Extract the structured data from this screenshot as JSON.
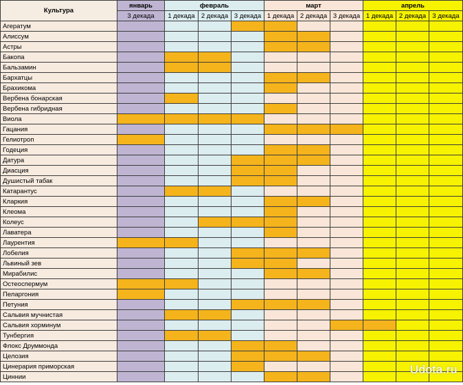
{
  "header": {
    "culture_label": "Культура",
    "months": [
      {
        "label": "январь",
        "decades": [
          "3 декада"
        ]
      },
      {
        "label": "февраль",
        "decades": [
          "1 декада",
          "2 декада",
          "3 декада"
        ]
      },
      {
        "label": "март",
        "decades": [
          "1 декада",
          "2 декада",
          "3 декада"
        ]
      },
      {
        "label": "апрель",
        "decades": [
          "1 декада",
          "2 декада",
          "3 декада"
        ]
      }
    ]
  },
  "colors": {
    "january": "#bfb5d3",
    "february": "#dcedf0",
    "march": "#f9e6d8",
    "april": "#f6f200",
    "sowing": "#f5b41c"
  },
  "rows": [
    {
      "name": "Агератум",
      "cells": [
        0,
        0,
        0,
        1,
        1,
        0,
        0,
        0,
        0,
        0
      ]
    },
    {
      "name": "Алиссум",
      "cells": [
        0,
        0,
        0,
        0,
        1,
        1,
        0,
        0,
        0,
        0
      ]
    },
    {
      "name": "Астры",
      "cells": [
        0,
        0,
        0,
        0,
        1,
        1,
        0,
        0,
        0,
        0
      ]
    },
    {
      "name": "Бакопа",
      "cells": [
        0,
        1,
        1,
        0,
        0,
        0,
        0,
        0,
        0,
        0
      ]
    },
    {
      "name": "Бальзамин",
      "cells": [
        0,
        1,
        1,
        0,
        0,
        0,
        0,
        0,
        0,
        0
      ]
    },
    {
      "name": "Бархатцы",
      "cells": [
        0,
        0,
        0,
        0,
        1,
        1,
        0,
        0,
        0,
        0
      ]
    },
    {
      "name": "Брахикома",
      "cells": [
        0,
        0,
        0,
        0,
        1,
        0,
        0,
        0,
        0,
        0
      ]
    },
    {
      "name": "Вербена бонарская",
      "cells": [
        0,
        1,
        0,
        0,
        0,
        0,
        0,
        0,
        0,
        0
      ]
    },
    {
      "name": "Вербена гибридная",
      "cells": [
        0,
        0,
        0,
        0,
        1,
        0,
        0,
        0,
        0,
        0
      ]
    },
    {
      "name": "Виола",
      "cells": [
        1,
        1,
        1,
        1,
        0,
        0,
        0,
        0,
        0,
        0
      ]
    },
    {
      "name": "Гацания",
      "cells": [
        0,
        0,
        0,
        0,
        1,
        1,
        1,
        0,
        0,
        0
      ]
    },
    {
      "name": "Гелиотроп",
      "cells": [
        1,
        0,
        0,
        0,
        0,
        0,
        0,
        0,
        0,
        0
      ]
    },
    {
      "name": "Годеция",
      "cells": [
        0,
        0,
        0,
        0,
        1,
        1,
        0,
        0,
        0,
        0
      ]
    },
    {
      "name": "Датура",
      "cells": [
        0,
        0,
        0,
        1,
        1,
        1,
        0,
        0,
        0,
        0
      ]
    },
    {
      "name": "Диасция",
      "cells": [
        0,
        0,
        0,
        1,
        1,
        0,
        0,
        0,
        0,
        0
      ]
    },
    {
      "name": "Душистый табак",
      "cells": [
        0,
        0,
        0,
        1,
        1,
        0,
        0,
        0,
        0,
        0
      ]
    },
    {
      "name": "Катарантус",
      "cells": [
        0,
        1,
        1,
        0,
        0,
        0,
        0,
        0,
        0,
        0
      ]
    },
    {
      "name": "Кларкия",
      "cells": [
        0,
        0,
        0,
        0,
        1,
        1,
        0,
        0,
        0,
        0
      ]
    },
    {
      "name": "Клеома",
      "cells": [
        0,
        0,
        0,
        0,
        1,
        0,
        0,
        0,
        0,
        0
      ]
    },
    {
      "name": "Колеус",
      "cells": [
        0,
        0,
        1,
        1,
        1,
        0,
        0,
        0,
        0,
        0
      ]
    },
    {
      "name": "Лаватера",
      "cells": [
        0,
        0,
        0,
        0,
        1,
        0,
        0,
        0,
        0,
        0
      ]
    },
    {
      "name": "Лаурентия",
      "cells": [
        1,
        1,
        0,
        0,
        0,
        0,
        0,
        0,
        0,
        0
      ]
    },
    {
      "name": "Лобелия",
      "cells": [
        0,
        0,
        0,
        1,
        1,
        1,
        0,
        0,
        0,
        0
      ]
    },
    {
      "name": "Львиный зев",
      "cells": [
        0,
        0,
        0,
        1,
        1,
        0,
        0,
        0,
        0,
        0
      ]
    },
    {
      "name": "Мирабилис",
      "cells": [
        0,
        0,
        0,
        0,
        1,
        1,
        0,
        0,
        0,
        0
      ]
    },
    {
      "name": "Остеоспермум",
      "cells": [
        1,
        1,
        0,
        0,
        0,
        0,
        0,
        0,
        0,
        0
      ]
    },
    {
      "name": "Пеларгония",
      "cells": [
        1,
        0,
        0,
        0,
        0,
        0,
        0,
        0,
        0,
        0
      ]
    },
    {
      "name": "Петуния",
      "cells": [
        0,
        0,
        0,
        1,
        1,
        1,
        0,
        0,
        0,
        0
      ]
    },
    {
      "name": "Сальвия мучнистая",
      "cells": [
        0,
        1,
        1,
        0,
        0,
        0,
        0,
        0,
        0,
        0
      ]
    },
    {
      "name": "Сальвия хорминум",
      "cells": [
        0,
        0,
        0,
        0,
        0,
        0,
        1,
        1,
        0,
        0
      ]
    },
    {
      "name": "Тунбергия",
      "cells": [
        0,
        1,
        1,
        0,
        0,
        0,
        0,
        0,
        0,
        0
      ]
    },
    {
      "name": "Флокс Друммонда",
      "cells": [
        0,
        0,
        0,
        1,
        1,
        0,
        0,
        0,
        0,
        0
      ]
    },
    {
      "name": "Целозия",
      "cells": [
        0,
        0,
        0,
        1,
        1,
        1,
        0,
        0,
        0,
        0
      ]
    },
    {
      "name": "Цинерария приморская",
      "cells": [
        0,
        0,
        0,
        1,
        0,
        0,
        0,
        0,
        0,
        0
      ]
    },
    {
      "name": "Циннии",
      "cells": [
        0,
        0,
        0,
        0,
        1,
        1,
        0,
        0,
        0,
        0
      ]
    }
  ],
  "watermark": "Udota.ru"
}
